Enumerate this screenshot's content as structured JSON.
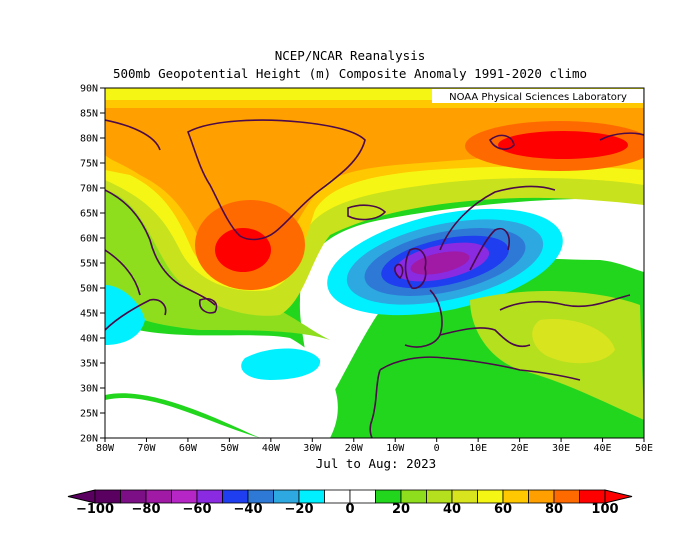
{
  "title": {
    "line1": "NCEP/NCAR Reanalysis",
    "line2": "500mb Geopotential Height (m) Composite Anomaly 1991-2020 climo"
  },
  "credit": "NOAA Physical Sciences Laboratory",
  "period": "Jul to Aug: 2023",
  "map": {
    "lat_ticks": [
      "90N",
      "85N",
      "80N",
      "75N",
      "70N",
      "65N",
      "60N",
      "55N",
      "50N",
      "45N",
      "40N",
      "35N",
      "30N",
      "25N",
      "20N"
    ],
    "lon_ticks": [
      "80W",
      "70W",
      "60W",
      "50W",
      "40W",
      "30W",
      "20W",
      "10W",
      "0",
      "10E",
      "20E",
      "30E",
      "40E",
      "50E"
    ],
    "lat_range": [
      20,
      90
    ],
    "lon_range": [
      -80,
      50
    ],
    "features": [
      {
        "name": "positive-anomaly-greenland",
        "lon": -47,
        "lat": 58,
        "peak": 100
      },
      {
        "name": "positive-anomaly-barents",
        "lon": 30,
        "lat": 79,
        "peak": 85
      },
      {
        "name": "negative-anomaly-north-sea",
        "lon": -2,
        "lat": 55,
        "peak": -70
      },
      {
        "name": "negative-anomaly-azores",
        "lon": -40,
        "lat": 36,
        "peak": -20
      }
    ]
  },
  "colorbar": {
    "labels": [
      "−100",
      "−80",
      "−60",
      "−40",
      "−20",
      "0",
      "20",
      "40",
      "60",
      "80",
      "100"
    ],
    "colors": [
      "#5a0060",
      "#7d0f86",
      "#a01aa6",
      "#b626c6",
      "#8a2be2",
      "#1e3ef0",
      "#2f79d6",
      "#2ea8e0",
      "#00f0ff",
      "#ffffff",
      "#ffffff",
      "#22d61e",
      "#8ede1e",
      "#b4e01e",
      "#d8e41e",
      "#f6f614",
      "#ffc800",
      "#ff9f00",
      "#ff6a00",
      "#ff0000"
    ],
    "min_color": "#5a0060",
    "max_color": "#ff0000"
  }
}
